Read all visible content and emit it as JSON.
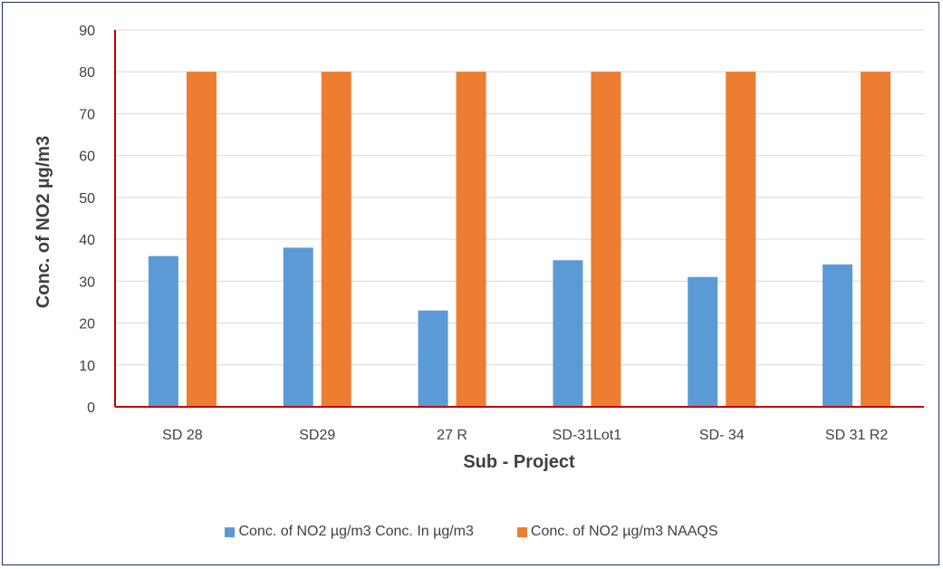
{
  "chart_data": {
    "type": "bar",
    "categories": [
      "SD 28",
      "SD29",
      "27 R",
      "SD-31Lot1",
      "SD- 34",
      "SD 31 R2"
    ],
    "series": [
      {
        "name": "Conc. of  NO2  µg/m3 Conc. In µg/m3",
        "values": [
          36,
          38,
          23,
          35,
          31,
          34
        ],
        "color": "#5b9bd5"
      },
      {
        "name": "Conc. of  NO2  µg/m3 NAAQS",
        "values": [
          80,
          80,
          80,
          80,
          80,
          80
        ],
        "color": "#ed7d31"
      }
    ],
    "xlabel": "Sub - Project",
    "ylabel": "Conc. of  NO2  µg/m3",
    "ylim": [
      0,
      90
    ],
    "yticks": [
      0,
      10,
      20,
      30,
      40,
      50,
      60,
      70,
      80,
      90
    ],
    "grid": true,
    "legend_position": "bottom"
  }
}
